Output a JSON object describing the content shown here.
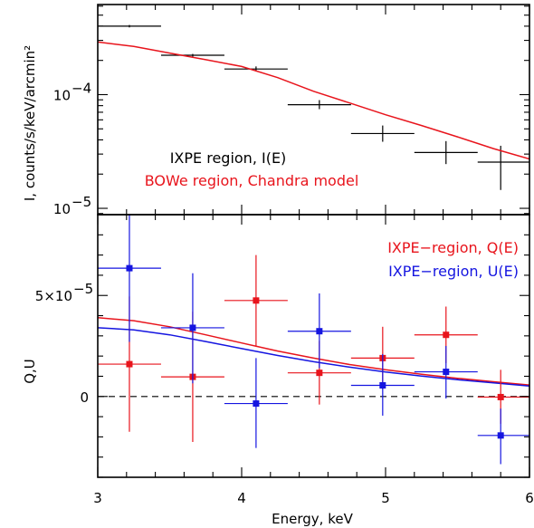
{
  "chart_data": [
    {
      "type": "scatter",
      "panel": "top",
      "title": "",
      "xlabel": "",
      "ylabel": "I, counts/s/keV/arcmin²",
      "xlim": [
        3,
        6
      ],
      "ylim": [
        8.8e-06,
        0.00062
      ],
      "yscale": "log",
      "ytick_labels": [
        {
          "value": 0.0001,
          "label": "10",
          "exp": "−4"
        },
        {
          "value": 1e-05,
          "label": "10",
          "exp": "−5"
        }
      ],
      "legend": [
        {
          "text": "IXPE region, I(E)",
          "color": "#000000"
        },
        {
          "text": "BOWe region, Chandra model",
          "color": "#e8141c"
        }
      ],
      "series": [
        {
          "name": "IXPE region, I(E)",
          "color": "#000000",
          "points": [
            {
              "x": 3.22,
              "xlo": 3.0,
              "xhi": 3.44,
              "y": 0.0004,
              "ylo": 0.00039,
              "yhi": 0.00041
            },
            {
              "x": 3.66,
              "xlo": 3.44,
              "xhi": 3.88,
              "y": 0.000222,
              "ylo": 0.000216,
              "yhi": 0.000228
            },
            {
              "x": 4.1,
              "xlo": 3.88,
              "xhi": 4.32,
              "y": 0.000168,
              "ylo": 0.00016,
              "yhi": 0.000177
            },
            {
              "x": 4.54,
              "xlo": 4.32,
              "xhi": 4.76,
              "y": 8.15e-05,
              "ylo": 7.45e-05,
              "yhi": 8.95e-05
            },
            {
              "x": 4.98,
              "xlo": 4.76,
              "xhi": 5.2,
              "y": 4.55e-05,
              "ylo": 3.85e-05,
              "yhi": 5.35e-05
            },
            {
              "x": 5.42,
              "xlo": 5.2,
              "xhi": 5.64,
              "y": 3.1e-05,
              "ylo": 2.45e-05,
              "yhi": 3.9e-05
            },
            {
              "x": 5.8,
              "xlo": 5.64,
              "xhi": 6.0,
              "y": 2.55e-05,
              "ylo": 1.45e-05,
              "yhi": 3.55e-05
            }
          ]
        },
        {
          "name": "BOWe region, Chandra model",
          "color": "#e8141c",
          "curve": [
            [
              3.0,
              0.00029
            ],
            [
              3.25,
              0.000265
            ],
            [
              3.5,
              0.000232
            ],
            [
              3.75,
              0.000203
            ],
            [
              4.0,
              0.000177
            ],
            [
              4.25,
              0.000141
            ],
            [
              4.5,
              0.000107
            ],
            [
              4.75,
              8.45e-05
            ],
            [
              5.0,
              6.65e-05
            ],
            [
              5.25,
              5.35e-05
            ],
            [
              5.5,
              4.25e-05
            ],
            [
              5.75,
              3.35e-05
            ],
            [
              6.0,
              2.72e-05
            ]
          ]
        }
      ]
    },
    {
      "type": "scatter",
      "panel": "bottom",
      "title": "",
      "xlabel": "Energy, keV",
      "ylabel": "Q,U",
      "xlim": [
        3,
        6
      ],
      "ylim": [
        -4e-05,
        9e-05
      ],
      "xticks": [
        3,
        4,
        5,
        6
      ],
      "xtick_labels": [
        "3",
        "4",
        "5",
        "6"
      ],
      "ytick_labels": [
        {
          "value": 5e-05,
          "label": "5×10",
          "exp": "−5"
        },
        {
          "value": 0,
          "label": "0",
          "exp": ""
        }
      ],
      "zero_line": true,
      "legend": [
        {
          "text": "IXPE−region, Q(E)",
          "color": "#e8141c"
        },
        {
          "text": "IXPE−region, U(E)",
          "color": "#1515e0"
        }
      ],
      "series": [
        {
          "name": "IXPE−region, Q(E)",
          "color": "#e8141c",
          "points": [
            {
              "x": 3.22,
              "xlo": 3.0,
              "xhi": 3.44,
              "y": 1.6e-05,
              "ylo": -1.75e-05,
              "yhi": 4.95e-05
            },
            {
              "x": 3.66,
              "xlo": 3.44,
              "xhi": 3.88,
              "y": 9.7e-06,
              "ylo": -2.25e-05,
              "yhi": 4.2e-05
            },
            {
              "x": 4.1,
              "xlo": 3.88,
              "xhi": 4.32,
              "y": 4.75e-05,
              "ylo": 2.5e-05,
              "yhi": 7e-05
            },
            {
              "x": 4.54,
              "xlo": 4.32,
              "xhi": 4.76,
              "y": 1.17e-05,
              "ylo": -4e-06,
              "yhi": 2.75e-05
            },
            {
              "x": 4.98,
              "xlo": 4.76,
              "xhi": 5.2,
              "y": 1.9e-05,
              "ylo": 3.5e-06,
              "yhi": 3.45e-05
            },
            {
              "x": 5.42,
              "xlo": 5.2,
              "xhi": 5.64,
              "y": 3.05e-05,
              "ylo": 1.65e-05,
              "yhi": 4.45e-05
            },
            {
              "x": 5.8,
              "xlo": 5.64,
              "xhi": 6.0,
              "y": -3e-07,
              "ylo": -1.35e-05,
              "yhi": 1.32e-05
            }
          ]
        },
        {
          "name": "IXPE−region, U(E)",
          "color": "#1515e0",
          "points": [
            {
              "x": 3.22,
              "xlo": 3.0,
              "xhi": 3.44,
              "y": 6.35e-05,
              "ylo": 2.7e-05,
              "yhi": 0.000101
            },
            {
              "x": 3.66,
              "xlo": 3.44,
              "xhi": 3.88,
              "y": 3.4e-05,
              "ylo": 6.5e-06,
              "yhi": 6.1e-05
            },
            {
              "x": 4.1,
              "xlo": 3.88,
              "xhi": 4.32,
              "y": -3.5e-06,
              "ylo": -2.55e-05,
              "yhi": 1.9e-05
            },
            {
              "x": 4.54,
              "xlo": 4.32,
              "xhi": 4.76,
              "y": 3.23e-05,
              "ylo": 1.4e-05,
              "yhi": 5.1e-05
            },
            {
              "x": 4.98,
              "xlo": 4.76,
              "xhi": 5.2,
              "y": 5.5e-06,
              "ylo": -9.5e-06,
              "yhi": 2.1e-05
            },
            {
              "x": 5.42,
              "xlo": 5.2,
              "xhi": 5.64,
              "y": 1.22e-05,
              "ylo": -1e-06,
              "yhi": 2.5e-05
            },
            {
              "x": 5.8,
              "xlo": 5.64,
              "xhi": 6.0,
              "y": -1.93e-05,
              "ylo": -3.35e-05,
              "yhi": -6e-06
            }
          ]
        },
        {
          "name": "Q model",
          "color": "#e8141c",
          "curve": [
            [
              3.0,
              3.9e-05
            ],
            [
              3.25,
              3.75e-05
            ],
            [
              3.5,
              3.45e-05
            ],
            [
              3.75,
              3.05e-05
            ],
            [
              4.0,
              2.65e-05
            ],
            [
              4.25,
              2.25e-05
            ],
            [
              4.5,
              1.9e-05
            ],
            [
              4.75,
              1.58e-05
            ],
            [
              5.0,
              1.32e-05
            ],
            [
              5.25,
              1.1e-05
            ],
            [
              5.5,
              9e-06
            ],
            [
              5.75,
              7.3e-06
            ],
            [
              6.0,
              5.7e-06
            ]
          ]
        },
        {
          "name": "U model",
          "color": "#1515e0",
          "curve": [
            [
              3.0,
              3.4e-05
            ],
            [
              3.25,
              3.3e-05
            ],
            [
              3.5,
              3.05e-05
            ],
            [
              3.75,
              2.72e-05
            ],
            [
              4.0,
              2.37e-05
            ],
            [
              4.25,
              2.03e-05
            ],
            [
              4.5,
              1.72e-05
            ],
            [
              4.75,
              1.45e-05
            ],
            [
              5.0,
              1.21e-05
            ],
            [
              5.25,
              1.01e-05
            ],
            [
              5.5,
              8.3e-06
            ],
            [
              5.75,
              6.7e-06
            ],
            [
              6.0,
              5.2e-06
            ]
          ]
        }
      ]
    }
  ]
}
